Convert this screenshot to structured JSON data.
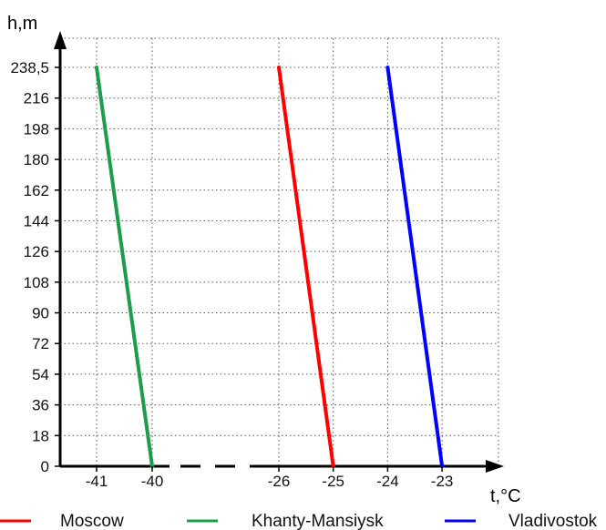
{
  "chart_data": {
    "type": "line",
    "ylabel": "h,m",
    "xlabel": "t,°C",
    "y_ticks": [
      0,
      18,
      36,
      54,
      72,
      90,
      108,
      126,
      144,
      162,
      180,
      198,
      216,
      238.5
    ],
    "y_tick_labels": [
      "0",
      "18",
      "36",
      "54",
      "72",
      "90",
      "108",
      "126",
      "144",
      "162",
      "180",
      "198",
      "216",
      "238,5"
    ],
    "x_ticks": [
      -41,
      -40,
      -26,
      -25,
      -24,
      -23
    ],
    "x_tick_labels": [
      "-41",
      "-40",
      "-26",
      "-25",
      "-24",
      "-23"
    ],
    "x_axis_break": "between -40 and -26",
    "ylim": [
      0,
      238.5
    ],
    "grid": true,
    "legend_position": "bottom",
    "series": [
      {
        "name": "Moscow",
        "color": "#ff0000",
        "x": [
          -25,
          -26
        ],
        "y": [
          0,
          238.5
        ]
      },
      {
        "name": "Khanty-Mansiysk",
        "color": "#1e9b4b",
        "x": [
          -40,
          -41
        ],
        "y": [
          0,
          238.5
        ]
      },
      {
        "name": "Vladivostok",
        "color": "#0000ff",
        "x": [
          -23,
          -24
        ],
        "y": [
          0,
          238.5
        ]
      }
    ]
  }
}
